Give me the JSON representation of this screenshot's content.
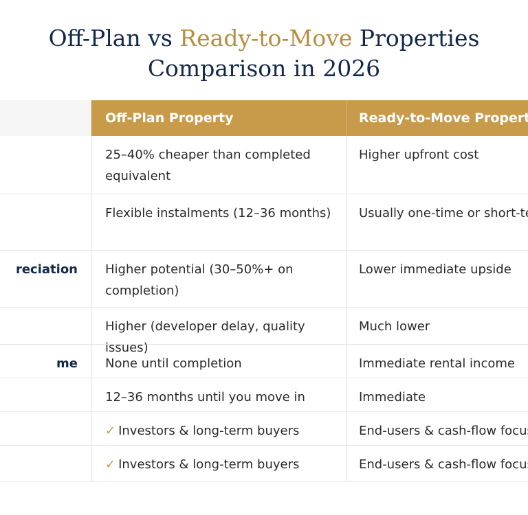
{
  "title": {
    "line1_part1": "Off-Plan vs ",
    "line1_accent": "Ready-to-Move",
    "line1_part2": " Properties",
    "line2": "Comparison in 2026"
  },
  "colors": {
    "navy": "#14284a",
    "gold": "#c89b4b",
    "accent_text": "#b88d3e"
  },
  "table": {
    "headers": {
      "feature": "",
      "off_plan": "Off-Plan Property",
      "ready": "Ready-to-Move Property"
    },
    "rows": [
      {
        "feature": "",
        "off_plan": "25–40% cheaper than completed equivalent",
        "ready": "Higher upfront cost",
        "check": false
      },
      {
        "feature": "",
        "off_plan": "Flexible instalments (12–36 months)",
        "ready": "Usually one-time or short-term",
        "check": false
      },
      {
        "feature": "reciation",
        "off_plan": "Higher potential (30–50%+ on completion)",
        "ready": "Lower immediate upside",
        "check": false
      },
      {
        "feature": "",
        "off_plan": "Higher (developer delay, quality issues)",
        "ready": "Much lower",
        "check": false
      },
      {
        "feature": "me",
        "off_plan": "None until completion",
        "ready": "Immediate rental income",
        "check": false
      },
      {
        "feature": "",
        "off_plan": "12–36 months until you move in",
        "ready": "Immediate",
        "check": false
      },
      {
        "feature": "",
        "off_plan": "Investors & long-term buyers",
        "ready": "End-users & cash-flow focus",
        "check": true
      },
      {
        "feature": "",
        "off_plan": "Investors & long-term buyers",
        "ready": "End-users & cash-flow focus",
        "check": true
      }
    ]
  }
}
